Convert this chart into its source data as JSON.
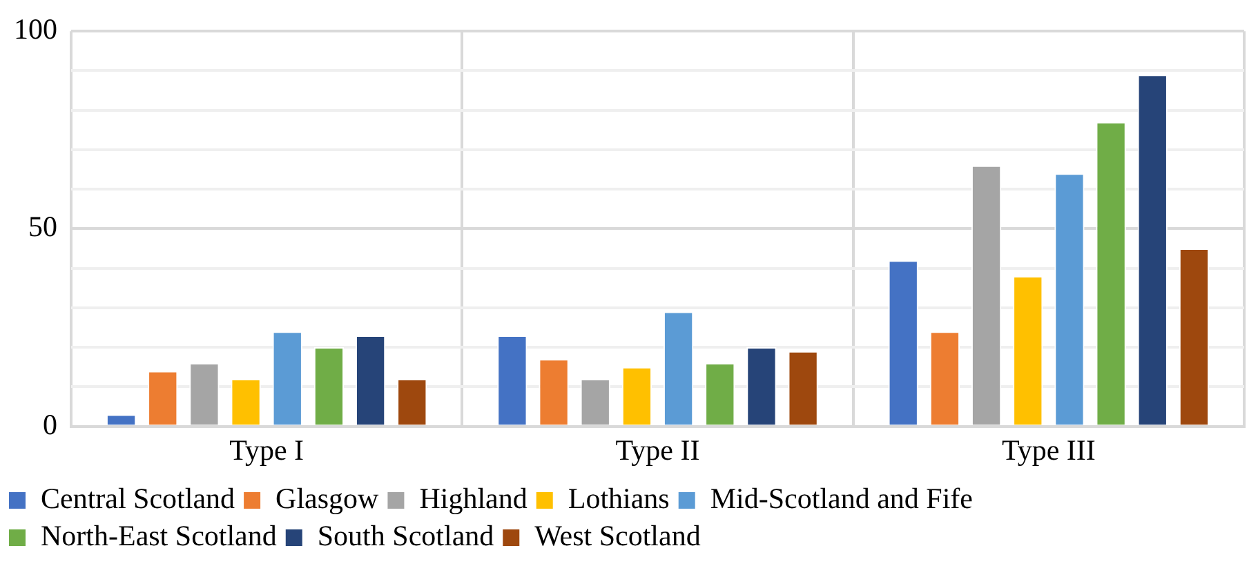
{
  "chart_data": {
    "type": "bar",
    "categories": [
      "Type I",
      "Type II",
      "Type III"
    ],
    "series": [
      {
        "name": "Central Scotland",
        "color": "#4472c4",
        "values": [
          3,
          23,
          42
        ]
      },
      {
        "name": "Glasgow",
        "color": "#ed7d31",
        "values": [
          14,
          17,
          24
        ]
      },
      {
        "name": "Highland",
        "color": "#a5a5a5",
        "values": [
          16,
          12,
          66
        ]
      },
      {
        "name": "Lothians",
        "color": "#ffc000",
        "values": [
          12,
          15,
          38
        ]
      },
      {
        "name": "Mid-Scotland and Fife",
        "color": "#5b9bd5",
        "values": [
          24,
          29,
          64
        ]
      },
      {
        "name": "North-East Scotland",
        "color": "#70ad47",
        "values": [
          20,
          16,
          77
        ]
      },
      {
        "name": "South Scotland",
        "color": "#264478",
        "values": [
          23,
          20,
          89
        ]
      },
      {
        "name": "West Scotland",
        "color": "#9e480e",
        "values": [
          12,
          19,
          45
        ]
      }
    ],
    "ylim": [
      0,
      100
    ],
    "yticks": [
      0,
      {
        "value": 10,
        "label": null
      },
      {
        "value": 20,
        "label": null
      },
      {
        "value": 30,
        "label": null
      },
      {
        "value": 40,
        "label": null
      },
      50,
      {
        "value": 60,
        "label": null
      },
      {
        "value": 70,
        "label": null
      },
      {
        "value": 80,
        "label": null
      },
      {
        "value": 90,
        "label": null
      },
      100
    ],
    "grid": true,
    "legend": "bottom"
  }
}
